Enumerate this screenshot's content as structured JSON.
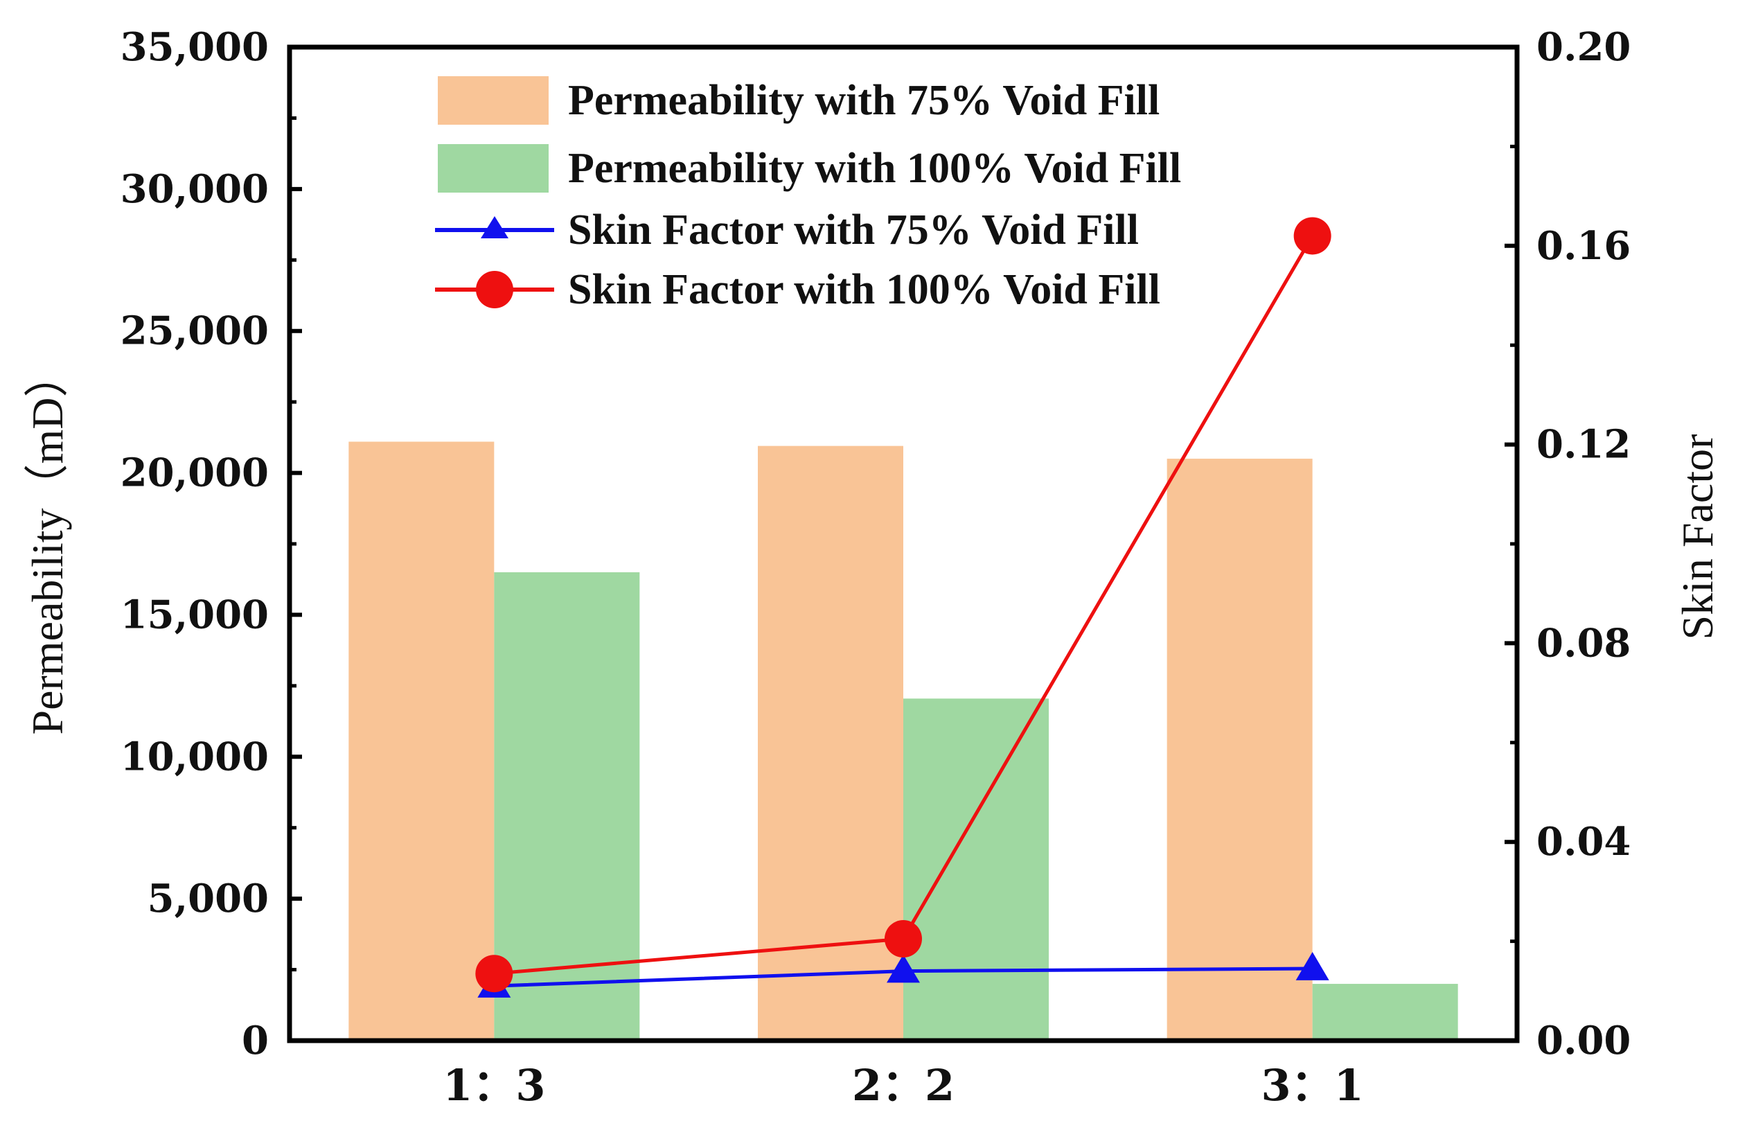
{
  "chart_data": {
    "type": "bar",
    "categories": [
      "1：3",
      "2：2",
      "3：1"
    ],
    "series": [
      {
        "name": "Permeability with 75% Void Fill",
        "kind": "bar",
        "axis": "left",
        "color": "#f9c496",
        "values": [
          21100,
          20950,
          20500
        ]
      },
      {
        "name": "Permeability with 100% Void Fill",
        "kind": "bar",
        "axis": "left",
        "color": "#9fd8a1",
        "values": [
          16500,
          12050,
          2000
        ]
      },
      {
        "name": "Skin Factor with 75% Void Fill",
        "kind": "line",
        "marker": "triangle",
        "axis": "right",
        "color": "#1010ee",
        "values": [
          0.011,
          0.014,
          0.0145
        ]
      },
      {
        "name": "Skin Factor with 100% Void Fill",
        "kind": "line",
        "marker": "circle",
        "axis": "right",
        "color": "#ee1010",
        "values": [
          0.0135,
          0.0205,
          0.162
        ]
      }
    ],
    "ylabel_left": "Permeability（mD）",
    "ylabel_right": "Skin Factor",
    "xlabel": "",
    "ylim_left": [
      0,
      35000
    ],
    "ylim_right": [
      0,
      0.2
    ],
    "yticks_left": [
      "0",
      "5,000",
      "10,000",
      "15,000",
      "20,000",
      "25,000",
      "30,000",
      "35,000"
    ],
    "yticks_left_values": [
      0,
      5000,
      10000,
      15000,
      20000,
      25000,
      30000,
      35000
    ],
    "yticks_right": [
      "0.00",
      "0.04",
      "0.08",
      "0.12",
      "0.16",
      "0.20"
    ],
    "yticks_right_values": [
      0,
      0.04,
      0.08,
      0.12,
      0.16,
      0.2
    ],
    "legend_position": "top-center",
    "grid": false
  }
}
